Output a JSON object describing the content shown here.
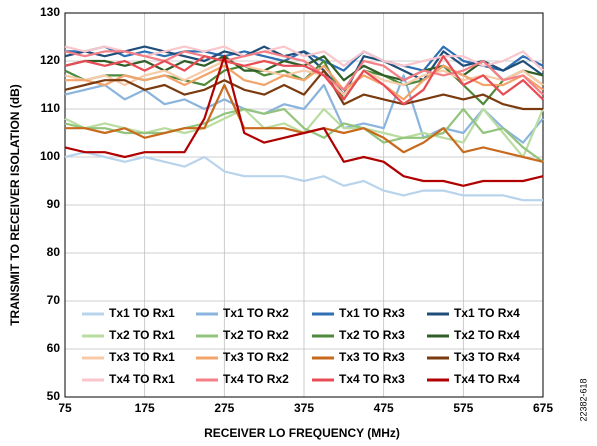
{
  "chart_data": {
    "type": "line",
    "xlabel": "RECEIVER LO FREQUENCY (MHz)",
    "ylabel": "TRANSMIT TO RECEIVER ISOLATION (dB)",
    "figure_id": "22382-618",
    "x": [
      75,
      100,
      125,
      150,
      175,
      200,
      225,
      250,
      275,
      300,
      325,
      350,
      375,
      400,
      425,
      450,
      475,
      500,
      525,
      550,
      575,
      600,
      625,
      650,
      675
    ],
    "xlim": [
      75,
      675
    ],
    "xticks": [
      75,
      175,
      275,
      375,
      475,
      575,
      675
    ],
    "ylim": [
      50,
      130
    ],
    "yticks": [
      50,
      60,
      70,
      80,
      90,
      100,
      110,
      120,
      130
    ],
    "grid": true,
    "series": [
      {
        "name": "Tx1 TO Rx1",
        "color": "#b8d4ec",
        "values": [
          100,
          101,
          100,
          99,
          100,
          99,
          98,
          100,
          97,
          96,
          96,
          96,
          95,
          96,
          94,
          95,
          93,
          92,
          93,
          93,
          92,
          92,
          92,
          91,
          91
        ]
      },
      {
        "name": "Tx1 TO Rx2",
        "color": "#8ab4dd",
        "values": [
          113,
          114,
          115,
          112,
          114,
          111,
          112,
          110,
          112,
          110,
          109,
          111,
          110,
          115,
          106,
          107,
          106,
          117,
          104,
          106,
          105,
          110,
          106,
          103,
          108
        ]
      },
      {
        "name": "Tx1 TO Rx3",
        "color": "#2e6fb5",
        "values": [
          122,
          122,
          123,
          121,
          122,
          121,
          122,
          122,
          121,
          122,
          121,
          120,
          122,
          120,
          118,
          122,
          120,
          119,
          118,
          123,
          120,
          119,
          118,
          121,
          119
        ]
      },
      {
        "name": "Tx1 TO Rx4",
        "color": "#1f4e79",
        "values": [
          121,
          122,
          121,
          122,
          123,
          122,
          121,
          120,
          122,
          121,
          123,
          121,
          122,
          118,
          113,
          121,
          120,
          118,
          116,
          122,
          119,
          120,
          118,
          120,
          117
        ]
      },
      {
        "name": "Tx2 TO Rx1",
        "color": "#b9dca0",
        "values": [
          108,
          106,
          107,
          106,
          105,
          106,
          105,
          106,
          108,
          110,
          106,
          107,
          105,
          110,
          106,
          106,
          105,
          104,
          105,
          104,
          103,
          110,
          105,
          100,
          110
        ]
      },
      {
        "name": "Tx2 TO Rx2",
        "color": "#93c47d",
        "values": [
          107,
          106,
          106,
          105,
          105,
          105,
          106,
          107,
          109,
          110,
          109,
          110,
          106,
          104,
          107,
          106,
          103,
          104,
          104,
          105,
          110,
          105,
          106,
          102,
          99
        ]
      },
      {
        "name": "Tx2 TO Rx3",
        "color": "#4e8a3a",
        "values": [
          118,
          116,
          117,
          117,
          116,
          117,
          116,
          115,
          118,
          119,
          117,
          118,
          116,
          120,
          112,
          118,
          117,
          115,
          116,
          119,
          115,
          111,
          116,
          118,
          115
        ]
      },
      {
        "name": "Tx2 TO Rx4",
        "color": "#2f5f26",
        "values": [
          119,
          120,
          120,
          119,
          120,
          118,
          120,
          119,
          121,
          118,
          118,
          120,
          119,
          121,
          116,
          119,
          117,
          116,
          118,
          119,
          117,
          120,
          116,
          118,
          117
        ]
      },
      {
        "name": "Tx3 TO Rx1",
        "color": "#f8cba8",
        "values": [
          117,
          116,
          117,
          115,
          117,
          118,
          116,
          118,
          120,
          119,
          118,
          117,
          118,
          117,
          113,
          118,
          116,
          115,
          117,
          118,
          116,
          117,
          116,
          118,
          115
        ]
      },
      {
        "name": "Tx3 TO Rx2",
        "color": "#f2a46a",
        "values": [
          116,
          116,
          115,
          117,
          116,
          117,
          115,
          117,
          119,
          116,
          115,
          117,
          116,
          119,
          114,
          117,
          115,
          112,
          116,
          119,
          117,
          115,
          115,
          117,
          114
        ]
      },
      {
        "name": "Tx3 TO Rx3",
        "color": "#c86a1d",
        "values": [
          106,
          106,
          105,
          106,
          104,
          105,
          106,
          106,
          115,
          106,
          106,
          106,
          105,
          106,
          105,
          106,
          104,
          101,
          103,
          106,
          101,
          102,
          101,
          100,
          99
        ]
      },
      {
        "name": "Tx3 TO Rx4",
        "color": "#7a3b10",
        "values": [
          114,
          115,
          116,
          116,
          114,
          115,
          113,
          114,
          116,
          114,
          113,
          115,
          113,
          118,
          111,
          113,
          112,
          111,
          112,
          113,
          112,
          113,
          111,
          110,
          110
        ]
      },
      {
        "name": "Tx4 TO Rx1",
        "color": "#f9c6cc",
        "values": [
          123,
          122,
          123,
          122,
          121,
          122,
          123,
          122,
          123,
          121,
          122,
          123,
          121,
          122,
          119,
          122,
          120,
          119,
          120,
          121,
          121,
          119,
          120,
          122,
          118
        ]
      },
      {
        "name": "Tx4 TO Rx2",
        "color": "#f47f86",
        "values": [
          122,
          121,
          122,
          122,
          121,
          120,
          122,
          121,
          120,
          121,
          122,
          121,
          120,
          117,
          114,
          120,
          119,
          116,
          118,
          117,
          118,
          120,
          116,
          117,
          113
        ]
      },
      {
        "name": "Tx4 TO Rx3",
        "color": "#e84c55",
        "values": [
          119,
          120,
          119,
          120,
          118,
          120,
          118,
          121,
          120,
          119,
          120,
          119,
          119,
          117,
          112,
          118,
          115,
          111,
          114,
          121,
          115,
          117,
          113,
          116,
          112
        ]
      },
      {
        "name": "Tx4 TO Rx4",
        "color": "#b00000",
        "values": [
          102,
          101,
          101,
          100,
          101,
          101,
          101,
          108,
          121,
          105,
          103,
          104,
          105,
          106,
          99,
          100,
          99,
          96,
          95,
          95,
          94,
          95,
          95,
          95,
          96
        ]
      }
    ]
  }
}
